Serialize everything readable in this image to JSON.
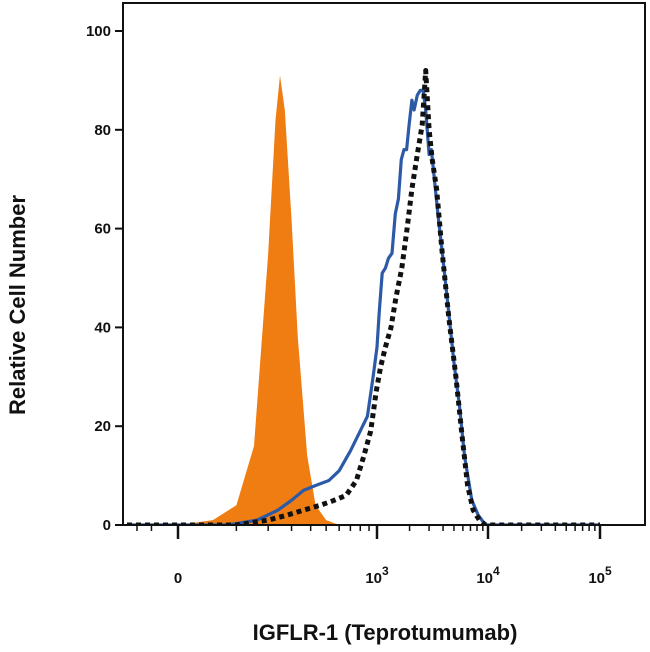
{
  "chart_data": {
    "type": "area",
    "xlabel": "IGFLR-1 (Teprotumumab)",
    "ylabel": "Relative Cell Number",
    "x_scale": "biexponential",
    "xlim": [
      -300,
      100000
    ],
    "ylim": [
      0,
      100
    ],
    "y_ticks": [
      0,
      20,
      40,
      60,
      80,
      100
    ],
    "x_ticks": [
      {
        "value": 0,
        "base": "0",
        "exp": ""
      },
      {
        "value": 1000,
        "base": "10",
        "exp": "3"
      },
      {
        "value": 10000,
        "base": "10",
        "exp": "4"
      },
      {
        "value": 100000,
        "base": "10",
        "exp": "5"
      }
    ],
    "grid": false,
    "legend": "none",
    "series": [
      {
        "style": "filled",
        "color": "#f07d12",
        "points": [
          [
            -150,
            0
          ],
          [
            0,
            0
          ],
          [
            50,
            1
          ],
          [
            100,
            4
          ],
          [
            150,
            16
          ],
          [
            200,
            55
          ],
          [
            230,
            82
          ],
          [
            250,
            91
          ],
          [
            270,
            84
          ],
          [
            300,
            62
          ],
          [
            330,
            38
          ],
          [
            380,
            14
          ],
          [
            430,
            4
          ],
          [
            500,
            1
          ],
          [
            600,
            0
          ],
          [
            100000,
            0
          ]
        ]
      },
      {
        "style": "solid",
        "color": "#2c5aa8",
        "points": [
          [
            -300,
            0
          ],
          [
            -100,
            0
          ],
          [
            0,
            0
          ],
          [
            80,
            0
          ],
          [
            160,
            1
          ],
          [
            240,
            3
          ],
          [
            300,
            5
          ],
          [
            360,
            7
          ],
          [
            430,
            8
          ],
          [
            520,
            9
          ],
          [
            600,
            11
          ],
          [
            700,
            15
          ],
          [
            800,
            19
          ],
          [
            880,
            22
          ],
          [
            950,
            30
          ],
          [
            1000,
            36
          ],
          [
            1050,
            43
          ],
          [
            1120,
            51
          ],
          [
            1200,
            52
          ],
          [
            1280,
            54
          ],
          [
            1380,
            55
          ],
          [
            1480,
            63
          ],
          [
            1580,
            66
          ],
          [
            1680,
            74
          ],
          [
            1780,
            76
          ],
          [
            1880,
            76
          ],
          [
            1980,
            81
          ],
          [
            2100,
            86
          ],
          [
            2200,
            84
          ],
          [
            2350,
            87
          ],
          [
            2500,
            88
          ],
          [
            2650,
            88
          ],
          [
            2800,
            84
          ],
          [
            3000,
            75
          ],
          [
            3150,
            76
          ],
          [
            3350,
            70
          ],
          [
            3600,
            63
          ],
          [
            3900,
            56
          ],
          [
            4400,
            45
          ],
          [
            5000,
            33
          ],
          [
            5600,
            24
          ],
          [
            6200,
            14
          ],
          [
            7200,
            5
          ],
          [
            8200,
            2
          ],
          [
            9500,
            0
          ],
          [
            20000,
            0
          ],
          [
            100000,
            0
          ]
        ]
      },
      {
        "style": "dotted",
        "color": "#111111",
        "points": [
          [
            -300,
            0
          ],
          [
            -150,
            0
          ],
          [
            0,
            0
          ],
          [
            100,
            0
          ],
          [
            200,
            1
          ],
          [
            280,
            2
          ],
          [
            360,
            3
          ],
          [
            460,
            4
          ],
          [
            560,
            5
          ],
          [
            660,
            6
          ],
          [
            760,
            9
          ],
          [
            840,
            14
          ],
          [
            920,
            19
          ],
          [
            990,
            27
          ],
          [
            1080,
            32
          ],
          [
            1200,
            36
          ],
          [
            1350,
            40
          ],
          [
            1500,
            46
          ],
          [
            1700,
            52
          ],
          [
            1900,
            60
          ],
          [
            2100,
            68
          ],
          [
            2350,
            75
          ],
          [
            2600,
            81
          ],
          [
            2800,
            92
          ],
          [
            3000,
            80
          ],
          [
            3200,
            74
          ],
          [
            3500,
            68
          ],
          [
            3900,
            56
          ],
          [
            4500,
            42
          ],
          [
            5200,
            30
          ],
          [
            5900,
            18
          ],
          [
            6600,
            8
          ],
          [
            7400,
            3
          ],
          [
            8400,
            1
          ],
          [
            9500,
            0
          ],
          [
            20000,
            0
          ],
          [
            100000,
            0
          ]
        ]
      }
    ]
  }
}
